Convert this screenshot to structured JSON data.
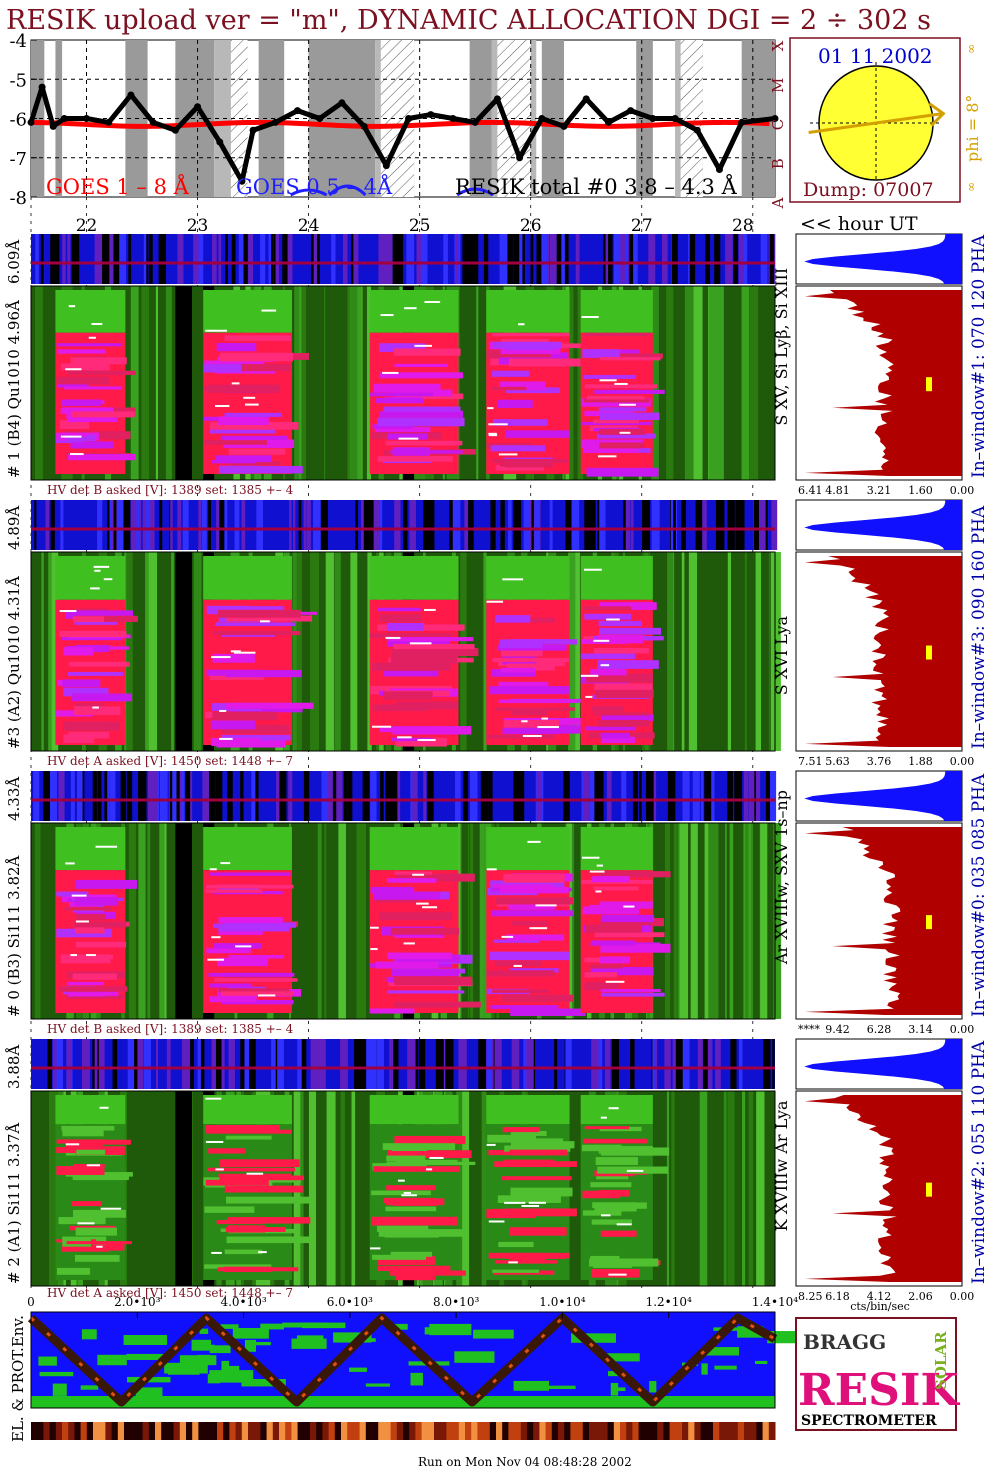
{
  "title": "RESIK upload ver = \"m\", DYNAMIC ALLOCATION  DGI =   2 ÷ 302 s",
  "colors": {
    "title": "#7a1020",
    "goes_long": "#ff0000",
    "goes_short": "#2020ff",
    "resik_total": "#000000",
    "sun": "#ffff33",
    "phi": "#d4a000",
    "date": "#0000cc",
    "spectrum_fill": "#b00000",
    "pha_fill": "#1010ff",
    "label_blue": "#0000aa"
  },
  "chart_data": [
    {
      "type": "line",
      "name": "light-curve-panel",
      "ylim": [
        -8,
        -4
      ],
      "yticks": [
        "-4",
        "-5",
        "-6",
        "-7",
        "-8"
      ],
      "goes_class_labels": [
        "X",
        "M",
        "C",
        "B",
        "A"
      ],
      "legend": [
        "GOES 1 – 8 Å",
        "GOES 0.5 – 4Å",
        "RESIK total #0  3.8 – 4.3 Å"
      ],
      "xlim": [
        21.5,
        28.2
      ],
      "hour_ticks": [
        "22",
        "23",
        "24",
        "25",
        "26",
        "27",
        "28"
      ],
      "hour_values": [
        22,
        23,
        24,
        25,
        26,
        27,
        28
      ],
      "hour_axis_label": "<< hour UT",
      "series": [
        {
          "name": "GOES 1 – 8 Å",
          "level": -6.15
        },
        {
          "name": "RESIK total #0  3.8 – 4.3 Å",
          "x": [
            21.5,
            21.6,
            21.7,
            21.8,
            22.0,
            22.2,
            22.4,
            22.6,
            22.8,
            23.0,
            23.2,
            23.4,
            23.5,
            23.7,
            23.9,
            24.1,
            24.3,
            24.5,
            24.7,
            24.9,
            25.1,
            25.3,
            25.5,
            25.7,
            25.9,
            26.1,
            26.3,
            26.5,
            26.7,
            26.9,
            27.1,
            27.3,
            27.5,
            27.7,
            27.9,
            28.2
          ],
          "y": [
            -6.1,
            -5.2,
            -6.2,
            -6.0,
            -6.0,
            -6.1,
            -5.4,
            -6.1,
            -6.3,
            -5.7,
            -6.6,
            -7.6,
            -6.3,
            -6.1,
            -5.8,
            -6.0,
            -5.6,
            -6.2,
            -7.2,
            -6.0,
            -5.9,
            -6.0,
            -6.1,
            -5.5,
            -7.0,
            -6.0,
            -6.2,
            -5.5,
            -6.1,
            -5.8,
            -6.0,
            -6.0,
            -6.3,
            -7.3,
            -6.1,
            -6.0
          ]
        }
      ]
    },
    {
      "type": "pie",
      "name": "sun-position",
      "date": "01 11 2002",
      "dump": "Dump: 07007",
      "phi_label": "phi =  8°",
      "phi_deg": 8,
      "infinity_mark": "∞"
    },
    {
      "type": "heatmap",
      "name": "spectrogram-panels",
      "panels": [
        {
          "top_label": "6.09Å",
          "left_label": "# 1 (B4) Qu1010 4.96Å",
          "line_label": "S XV, Si Lyβ, Si XIII",
          "hv": "HV det B asked [V]:  1389 set:  1385 +–    4",
          "pha_label": "In–window#1:  070 120 PHA",
          "spectrum_ticks": [
            "6.41",
            "4.81",
            "3.21",
            "1.60",
            "0.00"
          ],
          "peak_fraction": 1.0,
          "mean_fraction": 0.48
        },
        {
          "top_label": "4.89Å",
          "left_label": "#3 (A2) Qu1010  4.31Å",
          "line_label": "S XVI Lya",
          "hv": "HV det A asked [V]:  1450 set:  1448 +–    7",
          "pha_label": "In–window#3:  090 160 PHA",
          "spectrum_ticks": [
            "7.51",
            "5.63",
            "3.76",
            "1.88",
            "0.00"
          ],
          "peak_fraction": 1.0,
          "mean_fraction": 0.5
        },
        {
          "top_label": "4.33Å",
          "left_label": "# 0 (B3) Si111  3.82Å",
          "line_label": "Ar XVIIIw, SXV 1s–np",
          "hv": "HV det B asked [V]:  1389 set:  1385 +–    4",
          "pha_label": "In–window#0:  035 085 PHA",
          "spectrum_ticks": [
            "****",
            "9.42",
            "6.28",
            "3.14",
            "0.00"
          ],
          "peak_fraction": 1.0,
          "mean_fraction": 0.44
        },
        {
          "top_label": "3.88Å",
          "left_label": "# 2 (A1) Si111  3.37Å",
          "line_label": "K XVIIIw  Ar Lya",
          "hv": "HV det A asked [V]:  1450 set:  1448 +–    7",
          "pha_label": "In–window#2:  055 110 PHA",
          "spectrum_ticks": [
            "8.25",
            "6.18",
            "4.12",
            "2.06",
            "0.00"
          ],
          "peak_fraction": 1.0,
          "mean_fraction": 0.46
        }
      ],
      "spectrum_xlabel": "cts/bin/sec"
    },
    {
      "type": "heatmap",
      "name": "particle-environment",
      "ylabel": "EL. & PROT.Env.",
      "xticks": [
        "0",
        "2.0•10³",
        "4.0•10³",
        "6.0•10³",
        "8.0•10³",
        "1.0•10⁴",
        "1.2•10⁴",
        "1.4•10⁴"
      ],
      "xvalues": [
        0,
        2000,
        4000,
        6000,
        8000,
        10000,
        12000,
        14000
      ],
      "xlim": [
        0,
        14000
      ],
      "orbit_track_x": [
        0,
        1700,
        3300,
        5000,
        6600,
        8300,
        10000,
        11700,
        13300,
        14000
      ],
      "orbit_track_y": [
        1,
        0,
        1,
        0,
        1,
        0,
        1,
        0,
        1,
        0.75
      ]
    }
  ],
  "logo": {
    "top": "BRAGG",
    "main": "RESIK",
    "side": "SOLAR",
    "bottom": "SPECTROMETER"
  },
  "footer": "Run on Mon Nov 04 08:48:28 2002"
}
